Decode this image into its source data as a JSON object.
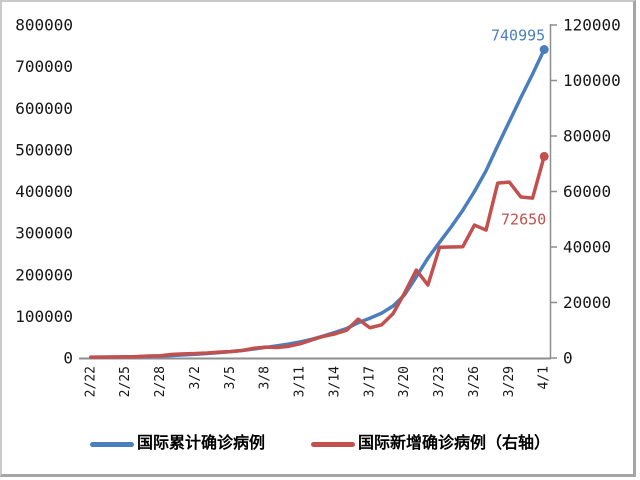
{
  "window": {
    "background": "#ffffff",
    "frame_border_light": "#c9c9c9",
    "frame_border_dark": "#a5a5a5",
    "axis_line_color": "#8e8e8e"
  },
  "chart_data": {
    "type": "line",
    "grid": false,
    "legend_position": "bottom",
    "x_categories": [
      "2/22",
      "2/23",
      "2/24",
      "2/25",
      "2/26",
      "2/27",
      "2/28",
      "2/29",
      "3/1",
      "3/2",
      "3/3",
      "3/4",
      "3/5",
      "3/6",
      "3/7",
      "3/8",
      "3/9",
      "3/10",
      "3/11",
      "3/12",
      "3/13",
      "3/14",
      "3/15",
      "3/16",
      "3/17",
      "3/18",
      "3/19",
      "3/20",
      "3/21",
      "3/22",
      "3/23",
      "3/24",
      "3/25",
      "3/26",
      "3/27",
      "3/28",
      "3/29",
      "3/30",
      "3/31",
      "4/1"
    ],
    "x_label_every": 3,
    "x_tick_labels": [
      "2/22",
      "2/25",
      "2/28",
      "3/2",
      "3/5",
      "3/8",
      "3/11",
      "3/14",
      "3/17",
      "3/20",
      "3/23",
      "3/26",
      "3/29",
      "4/1"
    ],
    "left_axis": {
      "min": 0,
      "max": 800000,
      "step": 100000,
      "tick_labels": [
        "0",
        "100000",
        "200000",
        "300000",
        "400000",
        "500000",
        "600000",
        "700000",
        "800000"
      ]
    },
    "right_axis": {
      "min": 0,
      "max": 120000,
      "step": 20000,
      "tick_labels": [
        "0",
        "20000",
        "40000",
        "60000",
        "80000",
        "100000",
        "120000"
      ]
    },
    "series": [
      {
        "name": "国际累计确诊病例",
        "axis": "left",
        "color": "#4a7ebc",
        "end_label": "740995",
        "values": [
          1700,
          2000,
          2300,
          2700,
          3200,
          3900,
          4700,
          6000,
          7500,
          9100,
          10900,
          13000,
          15300,
          18000,
          21500,
          25400,
          29200,
          33400,
          38500,
          45000,
          52800,
          61500,
          70700,
          84700,
          95600,
          107500,
          125000,
          152000,
          195000,
          240000,
          278000,
          315000,
          355000,
          400000,
          450000,
          510000,
          568000,
          626000,
          682000,
          740995
        ]
      },
      {
        "name": "国际新增确诊病例（右轴）",
        "axis": "right",
        "color": "#c1504e",
        "end_label": "72650",
        "values": [
          300,
          300,
          350,
          400,
          500,
          700,
          800,
          1300,
          1500,
          1600,
          1800,
          2100,
          2300,
          2700,
          3500,
          3900,
          3800,
          4200,
          5100,
          6500,
          7800,
          8700,
          10000,
          14000,
          10900,
          11900,
          16000,
          23500,
          31700,
          26300,
          39900,
          40000,
          40100,
          47900,
          46100,
          63000,
          63400,
          58000,
          57600,
          72650
        ]
      }
    ]
  }
}
